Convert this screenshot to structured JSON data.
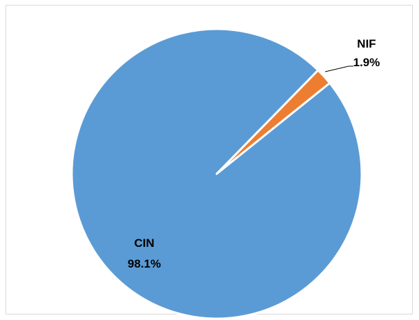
{
  "chart_data": {
    "type": "pie",
    "slices": [
      {
        "name": "CIN",
        "value": 98.1,
        "label": "98.1%",
        "color": "#5b9bd5"
      },
      {
        "name": "NIF",
        "value": 1.9,
        "label": "1.9%",
        "color": "#ed7d31"
      }
    ],
    "legend": "none",
    "data_labels": "category-and-percent"
  }
}
